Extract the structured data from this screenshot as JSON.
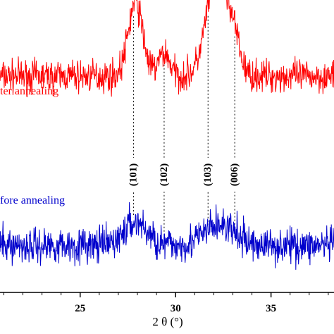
{
  "chart_data": {
    "type": "line",
    "title": "",
    "xlabel": "2 θ (°)",
    "ylabel": "",
    "xlim": [
      20.8,
      38.3
    ],
    "ylim": [
      -0.15,
      2.15
    ],
    "xticks": [
      25,
      30,
      35
    ],
    "xtick_labels": [
      "25",
      "30",
      "35"
    ],
    "grid": false,
    "series": [
      {
        "name": "ter annealing",
        "color": "#ff0000",
        "baseline": 1.55,
        "noise": 0.09,
        "peaks": [
          {
            "x": 27.9,
            "height": 0.58,
            "width": 0.38
          },
          {
            "x": 29.4,
            "height": 0.18,
            "width": 0.3
          },
          {
            "x": 32.2,
            "height": 0.85,
            "width": 0.55
          },
          {
            "x": 33.1,
            "height": 0.18,
            "width": 0.3
          }
        ]
      },
      {
        "name": "fore annealing",
        "color": "#0000cc",
        "baseline": 0.22,
        "noise": 0.1,
        "peaks": [
          {
            "x": 27.9,
            "height": 0.18,
            "width": 0.6
          },
          {
            "x": 32.3,
            "height": 0.16,
            "width": 0.8
          }
        ]
      }
    ],
    "reference_peaks": [
      {
        "x": 27.8,
        "label": "(101)"
      },
      {
        "x": 29.4,
        "label": "(102)"
      },
      {
        "x": 31.7,
        "label": "(103)"
      },
      {
        "x": 33.1,
        "label": "(006)"
      }
    ]
  }
}
